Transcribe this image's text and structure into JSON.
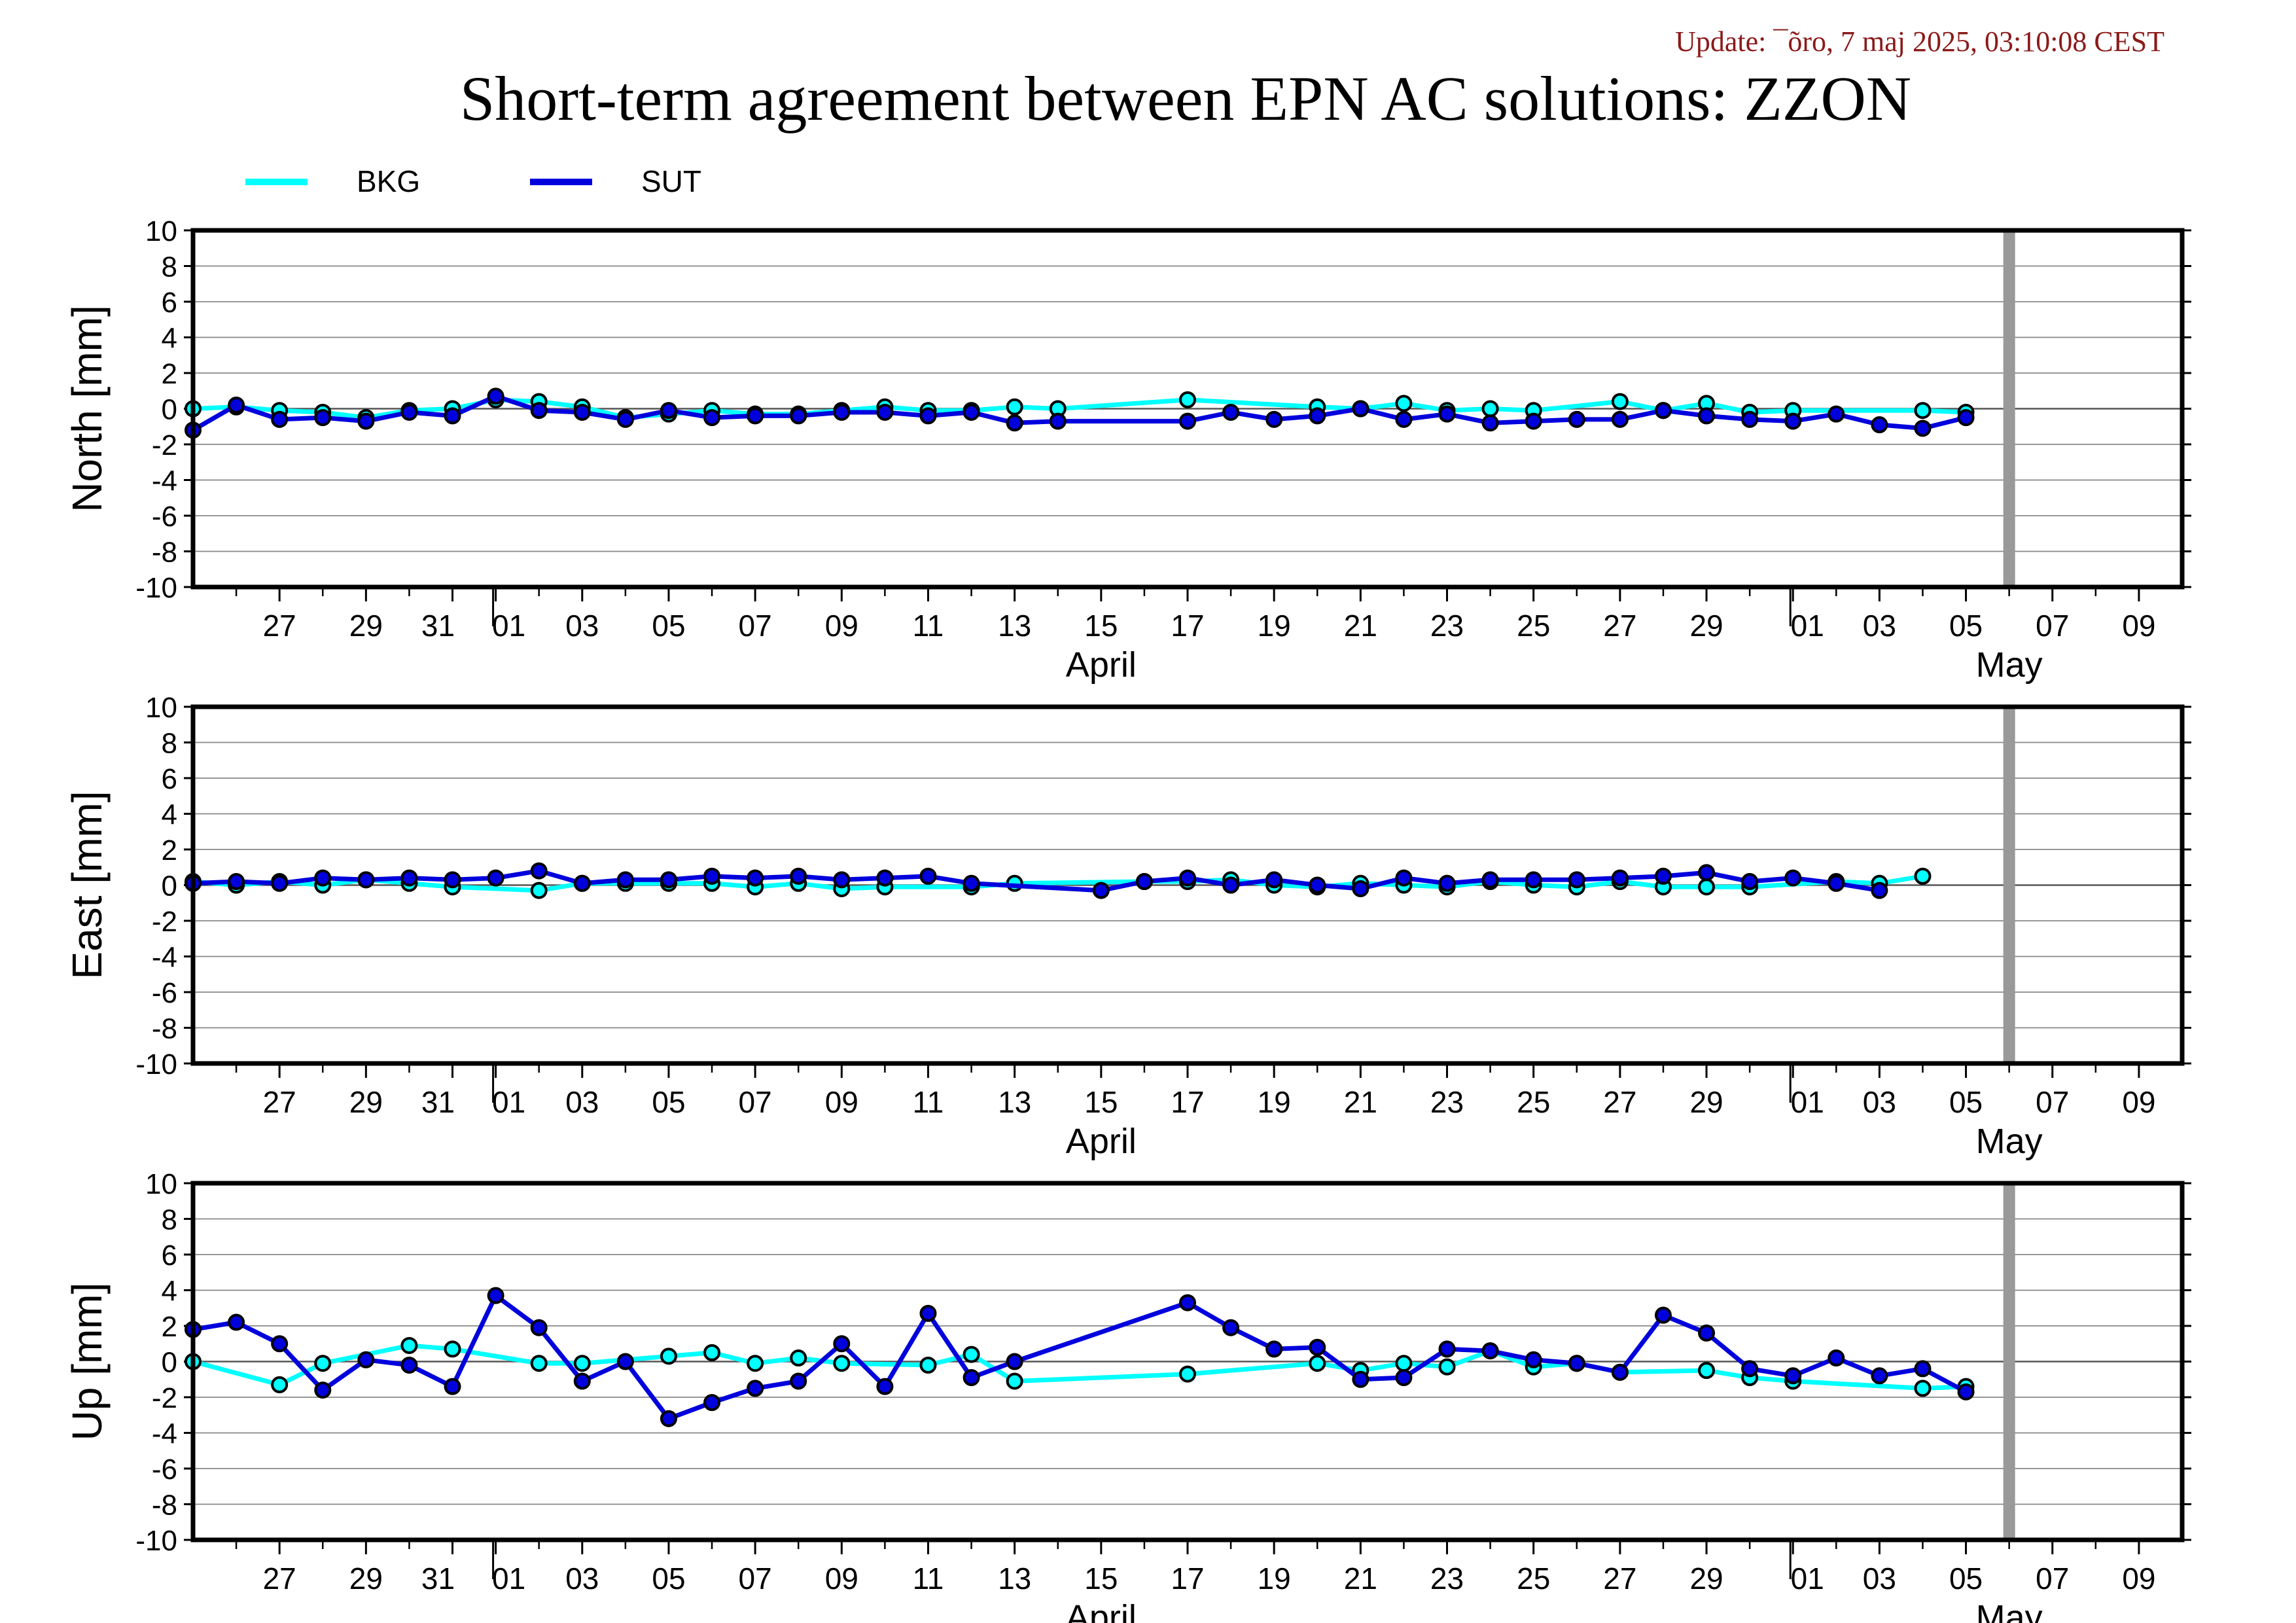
{
  "update_text": "Update: ¯õro, 7 maj 2025, 03:10:08 CEST",
  "title": "Short-term agreement between EPN AC solutions: ZZON",
  "colors": {
    "bkg": "#00ffff",
    "sut": "#0000dd",
    "update": "#8b1a1a",
    "gray_bar": "#999999",
    "grid": "#888888"
  },
  "legend": [
    {
      "name": "BKG",
      "color": "#00ffff"
    },
    {
      "name": "SUT",
      "color": "#0000dd"
    }
  ],
  "x_axis": {
    "start": "2025-03-25",
    "end": "2025-05-10",
    "tick_labels": [
      "27",
      "29",
      "31",
      "01",
      "03",
      "05",
      "07",
      "09",
      "11",
      "13",
      "15",
      "17",
      "19",
      "21",
      "23",
      "25",
      "27",
      "29",
      "01",
      "03",
      "05",
      "07",
      "09"
    ],
    "tick_dates": [
      "2025-03-27",
      "2025-03-29",
      "2025-03-31",
      "2025-04-01",
      "2025-04-03",
      "2025-04-05",
      "2025-04-07",
      "2025-04-09",
      "2025-04-11",
      "2025-04-13",
      "2025-04-15",
      "2025-04-17",
      "2025-04-19",
      "2025-04-21",
      "2025-04-23",
      "2025-04-25",
      "2025-04-27",
      "2025-04-29",
      "2025-05-01",
      "2025-05-03",
      "2025-05-05",
      "2025-05-07",
      "2025-05-09"
    ],
    "month_labels": [
      {
        "label": "April",
        "date": "2025-04-15"
      },
      {
        "label": "May",
        "date": "2025-05-06"
      }
    ],
    "month_boundaries": [
      "2025-04-01",
      "2025-05-01"
    ],
    "gray_bar_date": "2025-05-06"
  },
  "chart_data": [
    {
      "type": "line",
      "ylabel": "North [mm]",
      "ylim": [
        -10,
        10
      ],
      "yticks": [
        10,
        8,
        6,
        4,
        2,
        0,
        -2,
        -4,
        -6,
        -8,
        -10
      ],
      "grid": true,
      "series": [
        {
          "name": "BKG",
          "color": "#00ffff",
          "points": [
            [
              "2025-03-25",
              0.0
            ],
            [
              "2025-03-26",
              0.1
            ],
            [
              "2025-03-27",
              -0.1
            ],
            [
              "2025-03-28",
              -0.2
            ],
            [
              "2025-03-29",
              -0.5
            ],
            [
              "2025-03-30",
              -0.1
            ],
            [
              "2025-03-31",
              0.0
            ],
            [
              "2025-04-01",
              0.5
            ],
            [
              "2025-04-02",
              0.4
            ],
            [
              "2025-04-03",
              0.1
            ],
            [
              "2025-04-04",
              -0.5
            ],
            [
              "2025-04-05",
              -0.3
            ],
            [
              "2025-04-06",
              -0.1
            ],
            [
              "2025-04-07",
              -0.3
            ],
            [
              "2025-04-08",
              -0.3
            ],
            [
              "2025-04-09",
              -0.1
            ],
            [
              "2025-04-10",
              0.1
            ],
            [
              "2025-04-11",
              -0.1
            ],
            [
              "2025-04-12",
              -0.1
            ],
            [
              "2025-04-13",
              0.1
            ],
            [
              "2025-04-14",
              0.0
            ],
            [
              "2025-04-17",
              0.5
            ],
            [
              "2025-04-20",
              0.1
            ],
            [
              "2025-04-21",
              0.0
            ],
            [
              "2025-04-22",
              0.3
            ],
            [
              "2025-04-23",
              -0.1
            ],
            [
              "2025-04-24",
              0.0
            ],
            [
              "2025-04-25",
              -0.1
            ],
            [
              "2025-04-27",
              0.4
            ],
            [
              "2025-04-28",
              -0.1
            ],
            [
              "2025-04-29",
              0.3
            ],
            [
              "2025-04-30",
              -0.2
            ],
            [
              "2025-05-01",
              -0.1
            ],
            [
              "2025-05-04",
              -0.1
            ],
            [
              "2025-05-05",
              -0.2
            ]
          ]
        },
        {
          "name": "SUT",
          "color": "#0000dd",
          "points": [
            [
              "2025-03-25",
              -1.2
            ],
            [
              "2025-03-26",
              0.2
            ],
            [
              "2025-03-27",
              -0.6
            ],
            [
              "2025-03-28",
              -0.5
            ],
            [
              "2025-03-29",
              -0.7
            ],
            [
              "2025-03-30",
              -0.2
            ],
            [
              "2025-03-31",
              -0.4
            ],
            [
              "2025-04-01",
              0.7
            ],
            [
              "2025-04-02",
              -0.1
            ],
            [
              "2025-04-03",
              -0.2
            ],
            [
              "2025-04-04",
              -0.6
            ],
            [
              "2025-04-05",
              -0.1
            ],
            [
              "2025-04-06",
              -0.5
            ],
            [
              "2025-04-07",
              -0.4
            ],
            [
              "2025-04-08",
              -0.4
            ],
            [
              "2025-04-09",
              -0.2
            ],
            [
              "2025-04-10",
              -0.2
            ],
            [
              "2025-04-11",
              -0.4
            ],
            [
              "2025-04-12",
              -0.2
            ],
            [
              "2025-04-13",
              -0.8
            ],
            [
              "2025-04-14",
              -0.7
            ],
            [
              "2025-04-17",
              -0.7
            ],
            [
              "2025-04-18",
              -0.2
            ],
            [
              "2025-04-19",
              -0.6
            ],
            [
              "2025-04-20",
              -0.4
            ],
            [
              "2025-04-21",
              0.0
            ],
            [
              "2025-04-22",
              -0.6
            ],
            [
              "2025-04-23",
              -0.3
            ],
            [
              "2025-04-24",
              -0.8
            ],
            [
              "2025-04-25",
              -0.7
            ],
            [
              "2025-04-26",
              -0.6
            ],
            [
              "2025-04-27",
              -0.6
            ],
            [
              "2025-04-28",
              -0.1
            ],
            [
              "2025-04-29",
              -0.4
            ],
            [
              "2025-04-30",
              -0.6
            ],
            [
              "2025-05-01",
              -0.7
            ],
            [
              "2025-05-02",
              -0.3
            ],
            [
              "2025-05-03",
              -0.9
            ],
            [
              "2025-05-04",
              -1.1
            ],
            [
              "2025-05-05",
              -0.5
            ]
          ]
        }
      ]
    },
    {
      "type": "line",
      "ylabel": "East [mm]",
      "ylim": [
        -10,
        10
      ],
      "yticks": [
        10,
        8,
        6,
        4,
        2,
        0,
        -2,
        -4,
        -6,
        -8,
        -10
      ],
      "grid": true,
      "series": [
        {
          "name": "BKG",
          "color": "#00ffff",
          "points": [
            [
              "2025-03-25",
              0.2
            ],
            [
              "2025-03-26",
              0.0
            ],
            [
              "2025-03-27",
              0.2
            ],
            [
              "2025-03-28",
              0.0
            ],
            [
              "2025-03-29",
              0.3
            ],
            [
              "2025-03-30",
              0.1
            ],
            [
              "2025-03-31",
              -0.1
            ],
            [
              "2025-04-02",
              -0.3
            ],
            [
              "2025-04-03",
              0.1
            ],
            [
              "2025-04-04",
              0.1
            ],
            [
              "2025-04-05",
              0.1
            ],
            [
              "2025-04-06",
              0.1
            ],
            [
              "2025-04-07",
              -0.1
            ],
            [
              "2025-04-08",
              0.1
            ],
            [
              "2025-04-09",
              -0.2
            ],
            [
              "2025-04-10",
              -0.1
            ],
            [
              "2025-04-12",
              -0.1
            ],
            [
              "2025-04-13",
              0.1
            ],
            [
              "2025-04-16",
              0.2
            ],
            [
              "2025-04-17",
              0.2
            ],
            [
              "2025-04-18",
              0.3
            ],
            [
              "2025-04-19",
              0.0
            ],
            [
              "2025-04-20",
              -0.1
            ],
            [
              "2025-04-21",
              0.1
            ],
            [
              "2025-04-22",
              0.0
            ],
            [
              "2025-04-23",
              -0.1
            ],
            [
              "2025-04-24",
              0.2
            ],
            [
              "2025-04-25",
              0.0
            ],
            [
              "2025-04-26",
              -0.1
            ],
            [
              "2025-04-27",
              0.2
            ],
            [
              "2025-04-28",
              -0.1
            ],
            [
              "2025-04-29",
              -0.1
            ],
            [
              "2025-04-30",
              -0.1
            ],
            [
              "2025-05-02",
              0.2
            ],
            [
              "2025-05-03",
              0.1
            ],
            [
              "2025-05-04",
              0.5
            ]
          ]
        },
        {
          "name": "SUT",
          "color": "#0000dd",
          "points": [
            [
              "2025-03-25",
              0.1
            ],
            [
              "2025-03-26",
              0.2
            ],
            [
              "2025-03-27",
              0.1
            ],
            [
              "2025-03-28",
              0.4
            ],
            [
              "2025-03-29",
              0.3
            ],
            [
              "2025-03-30",
              0.4
            ],
            [
              "2025-03-31",
              0.3
            ],
            [
              "2025-04-01",
              0.4
            ],
            [
              "2025-04-02",
              0.8
            ],
            [
              "2025-04-03",
              0.1
            ],
            [
              "2025-04-04",
              0.3
            ],
            [
              "2025-04-05",
              0.3
            ],
            [
              "2025-04-06",
              0.5
            ],
            [
              "2025-04-07",
              0.4
            ],
            [
              "2025-04-08",
              0.5
            ],
            [
              "2025-04-09",
              0.3
            ],
            [
              "2025-04-10",
              0.4
            ],
            [
              "2025-04-11",
              0.5
            ],
            [
              "2025-04-12",
              0.1
            ],
            [
              "2025-04-15",
              -0.3
            ],
            [
              "2025-04-16",
              0.2
            ],
            [
              "2025-04-17",
              0.4
            ],
            [
              "2025-04-18",
              0.0
            ],
            [
              "2025-04-19",
              0.3
            ],
            [
              "2025-04-20",
              0.0
            ],
            [
              "2025-04-21",
              -0.2
            ],
            [
              "2025-04-22",
              0.4
            ],
            [
              "2025-04-23",
              0.1
            ],
            [
              "2025-04-24",
              0.3
            ],
            [
              "2025-04-25",
              0.3
            ],
            [
              "2025-04-26",
              0.3
            ],
            [
              "2025-04-27",
              0.4
            ],
            [
              "2025-04-28",
              0.5
            ],
            [
              "2025-04-29",
              0.7
            ],
            [
              "2025-04-30",
              0.2
            ],
            [
              "2025-05-01",
              0.4
            ],
            [
              "2025-05-02",
              0.1
            ],
            [
              "2025-05-03",
              -0.3
            ]
          ]
        }
      ]
    },
    {
      "type": "line",
      "ylabel": "Up [mm]",
      "ylim": [
        -10,
        10
      ],
      "yticks": [
        10,
        8,
        6,
        4,
        2,
        0,
        -2,
        -4,
        -6,
        -8,
        -10
      ],
      "grid": true,
      "series": [
        {
          "name": "BKG",
          "color": "#00ffff",
          "points": [
            [
              "2025-03-25",
              0.0
            ],
            [
              "2025-03-27",
              -1.3
            ],
            [
              "2025-03-28",
              -0.1
            ],
            [
              "2025-03-30",
              0.9
            ],
            [
              "2025-03-31",
              0.7
            ],
            [
              "2025-04-02",
              -0.1
            ],
            [
              "2025-04-03",
              -0.1
            ],
            [
              "2025-04-05",
              0.3
            ],
            [
              "2025-04-06",
              0.5
            ],
            [
              "2025-04-07",
              -0.1
            ],
            [
              "2025-04-08",
              0.2
            ],
            [
              "2025-04-09",
              -0.1
            ],
            [
              "2025-04-11",
              -0.2
            ],
            [
              "2025-04-12",
              0.4
            ],
            [
              "2025-04-13",
              -1.1
            ],
            [
              "2025-04-17",
              -0.7
            ],
            [
              "2025-04-20",
              -0.1
            ],
            [
              "2025-04-21",
              -0.5
            ],
            [
              "2025-04-22",
              -0.1
            ],
            [
              "2025-04-23",
              -0.3
            ],
            [
              "2025-04-24",
              0.6
            ],
            [
              "2025-04-25",
              -0.3
            ],
            [
              "2025-04-26",
              -0.1
            ],
            [
              "2025-04-27",
              -0.6
            ],
            [
              "2025-04-29",
              -0.5
            ],
            [
              "2025-04-30",
              -0.9
            ],
            [
              "2025-05-01",
              -1.1
            ],
            [
              "2025-05-04",
              -1.5
            ],
            [
              "2025-05-05",
              -1.4
            ]
          ]
        },
        {
          "name": "SUT",
          "color": "#0000dd",
          "points": [
            [
              "2025-03-25",
              1.8
            ],
            [
              "2025-03-26",
              2.2
            ],
            [
              "2025-03-27",
              1.0
            ],
            [
              "2025-03-28",
              -1.6
            ],
            [
              "2025-03-29",
              0.1
            ],
            [
              "2025-03-30",
              -0.2
            ],
            [
              "2025-03-31",
              -1.4
            ],
            [
              "2025-04-01",
              3.7
            ],
            [
              "2025-04-02",
              1.9
            ],
            [
              "2025-04-03",
              -1.1
            ],
            [
              "2025-04-04",
              0.0
            ],
            [
              "2025-04-05",
              -3.2
            ],
            [
              "2025-04-06",
              -2.3
            ],
            [
              "2025-04-07",
              -1.5
            ],
            [
              "2025-04-08",
              -1.1
            ],
            [
              "2025-04-09",
              1.0
            ],
            [
              "2025-04-10",
              -1.4
            ],
            [
              "2025-04-11",
              2.7
            ],
            [
              "2025-04-12",
              -0.9
            ],
            [
              "2025-04-13",
              0.0
            ],
            [
              "2025-04-17",
              3.3
            ],
            [
              "2025-04-18",
              1.9
            ],
            [
              "2025-04-19",
              0.7
            ],
            [
              "2025-04-20",
              0.8
            ],
            [
              "2025-04-21",
              -1.0
            ],
            [
              "2025-04-22",
              -0.9
            ],
            [
              "2025-04-23",
              0.7
            ],
            [
              "2025-04-24",
              0.6
            ],
            [
              "2025-04-25",
              0.1
            ],
            [
              "2025-04-26",
              -0.1
            ],
            [
              "2025-04-27",
              -0.6
            ],
            [
              "2025-04-28",
              2.6
            ],
            [
              "2025-04-29",
              1.6
            ],
            [
              "2025-04-30",
              -0.4
            ],
            [
              "2025-05-01",
              -0.8
            ],
            [
              "2025-05-02",
              0.2
            ],
            [
              "2025-05-03",
              -0.8
            ],
            [
              "2025-05-04",
              -0.4
            ],
            [
              "2025-05-05",
              -1.7
            ]
          ]
        }
      ]
    }
  ]
}
